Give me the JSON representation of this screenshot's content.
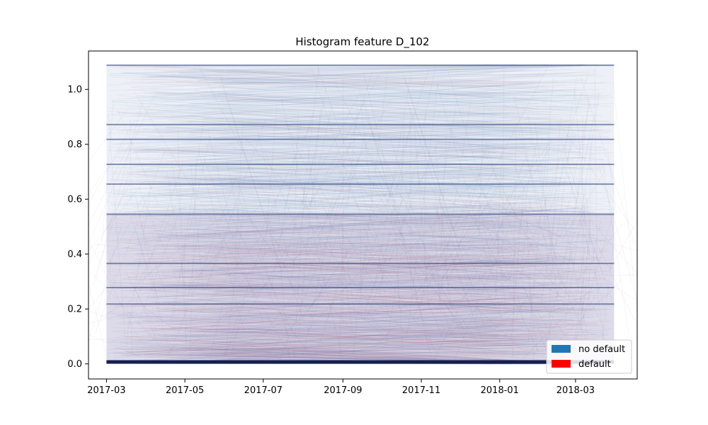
{
  "chart_data": {
    "type": "scatter",
    "title": "Histogram feature D_102",
    "xlabel": "",
    "ylabel": "",
    "x_axis": "date",
    "xlim": [
      "2017-02-15",
      "2018-04-18"
    ],
    "ylim": [
      -0.055,
      1.14
    ],
    "x_ticks": [
      "2017-03",
      "2017-05",
      "2017-07",
      "2017-09",
      "2017-11",
      "2018-01",
      "2018-03"
    ],
    "x_tick_dates": [
      "2017-03-01",
      "2017-05-01",
      "2017-07-01",
      "2017-09-01",
      "2017-11-01",
      "2018-01-01",
      "2018-03-01"
    ],
    "y_ticks": [
      "0.0",
      "0.2",
      "0.4",
      "0.6",
      "0.8",
      "1.0"
    ],
    "y_tick_values": [
      0.0,
      0.2,
      0.4,
      0.6,
      0.8,
      1.0
    ],
    "data_range": {
      "x": [
        "2017-03-01",
        "2018-03-31"
      ],
      "y": [
        0.0,
        1.09
      ]
    },
    "baseline_band": {
      "y": 0.007,
      "x": [
        "2017-03-01",
        "2018-03-31"
      ]
    },
    "prominent_levels": [
      1.088,
      0.872,
      0.818,
      0.727,
      0.655,
      0.545,
      0.366,
      0.278,
      0.218
    ],
    "legend": {
      "placement": "lower-right",
      "entries": [
        {
          "label": "no default",
          "color": "#1f77b4"
        },
        {
          "label": "default",
          "color": "#ff0000"
        }
      ]
    },
    "series": [
      {
        "name": "no default",
        "color": "#1f77b4"
      },
      {
        "name": "default",
        "color": "#ff0000"
      }
    ],
    "grid": false
  }
}
